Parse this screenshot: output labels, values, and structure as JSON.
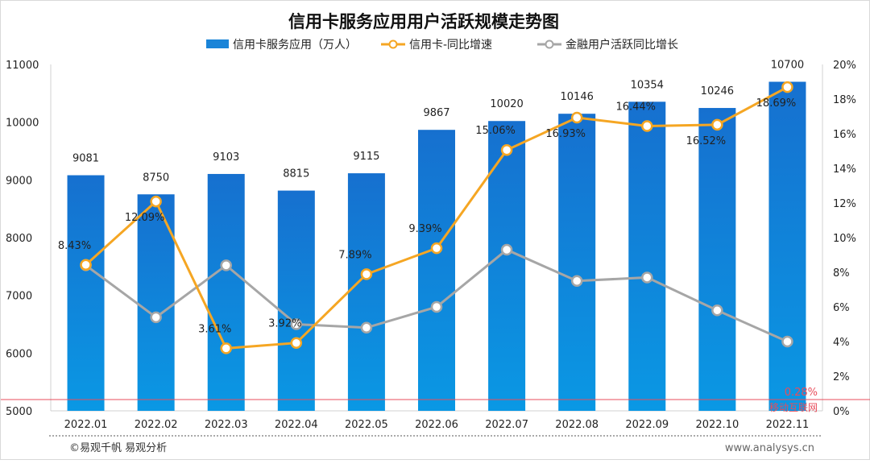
{
  "chart_data": {
    "type": "bar+line",
    "title": "信用卡服务应用用户活跃规模走势图",
    "categories": [
      "2022.01",
      "2022.02",
      "2022.03",
      "2022.04",
      "2022.05",
      "2022.06",
      "2022.07",
      "2022.08",
      "2022.09",
      "2022.10",
      "2022.11"
    ],
    "series": [
      {
        "name": "信用卡服务应用（万人）",
        "type": "bar",
        "axis": "left",
        "color": "#1a84d8",
        "values": [
          9081,
          8750,
          9103,
          8815,
          9115,
          9867,
          10020,
          10146,
          10354,
          10246,
          10700
        ]
      },
      {
        "name": "信用卡-同比增速",
        "type": "line",
        "axis": "right",
        "color": "#f5a623",
        "values": [
          8.43,
          12.09,
          3.61,
          3.92,
          7.89,
          9.39,
          15.06,
          16.93,
          16.44,
          16.52,
          18.69
        ],
        "labels": [
          "8.43%",
          "12.09%",
          "3.61%",
          "3.92%",
          "7.89%",
          "9.39%",
          "15.06%",
          "16.93%",
          "16.44%",
          "16.52%",
          "18.69%"
        ]
      },
      {
        "name": "金融用户活跃同比增长",
        "type": "line",
        "axis": "right",
        "color": "#a6a6a6",
        "values": [
          8.4,
          5.4,
          8.4,
          5.0,
          4.8,
          6.0,
          9.3,
          7.5,
          7.7,
          5.8,
          4.0
        ]
      }
    ],
    "left_axis": {
      "ylim": [
        5000,
        11000
      ],
      "ticks": [
        "5000",
        "6000",
        "7000",
        "8000",
        "9000",
        "10000",
        "11000"
      ]
    },
    "right_axis": {
      "ylim": [
        0,
        20
      ],
      "ticks": [
        "0%",
        "2%",
        "4%",
        "6%",
        "8%",
        "10%",
        "12%",
        "14%",
        "16%",
        "18%",
        "20%"
      ]
    },
    "reference_line": {
      "value": 0.28,
      "label": "0.28%",
      "name": "移动互联网",
      "color": "#e84d5b"
    },
    "legend": "top",
    "grid": false
  },
  "footer": {
    "source": "©易观千帆 易观分析",
    "website": "www.analysys.cn"
  }
}
